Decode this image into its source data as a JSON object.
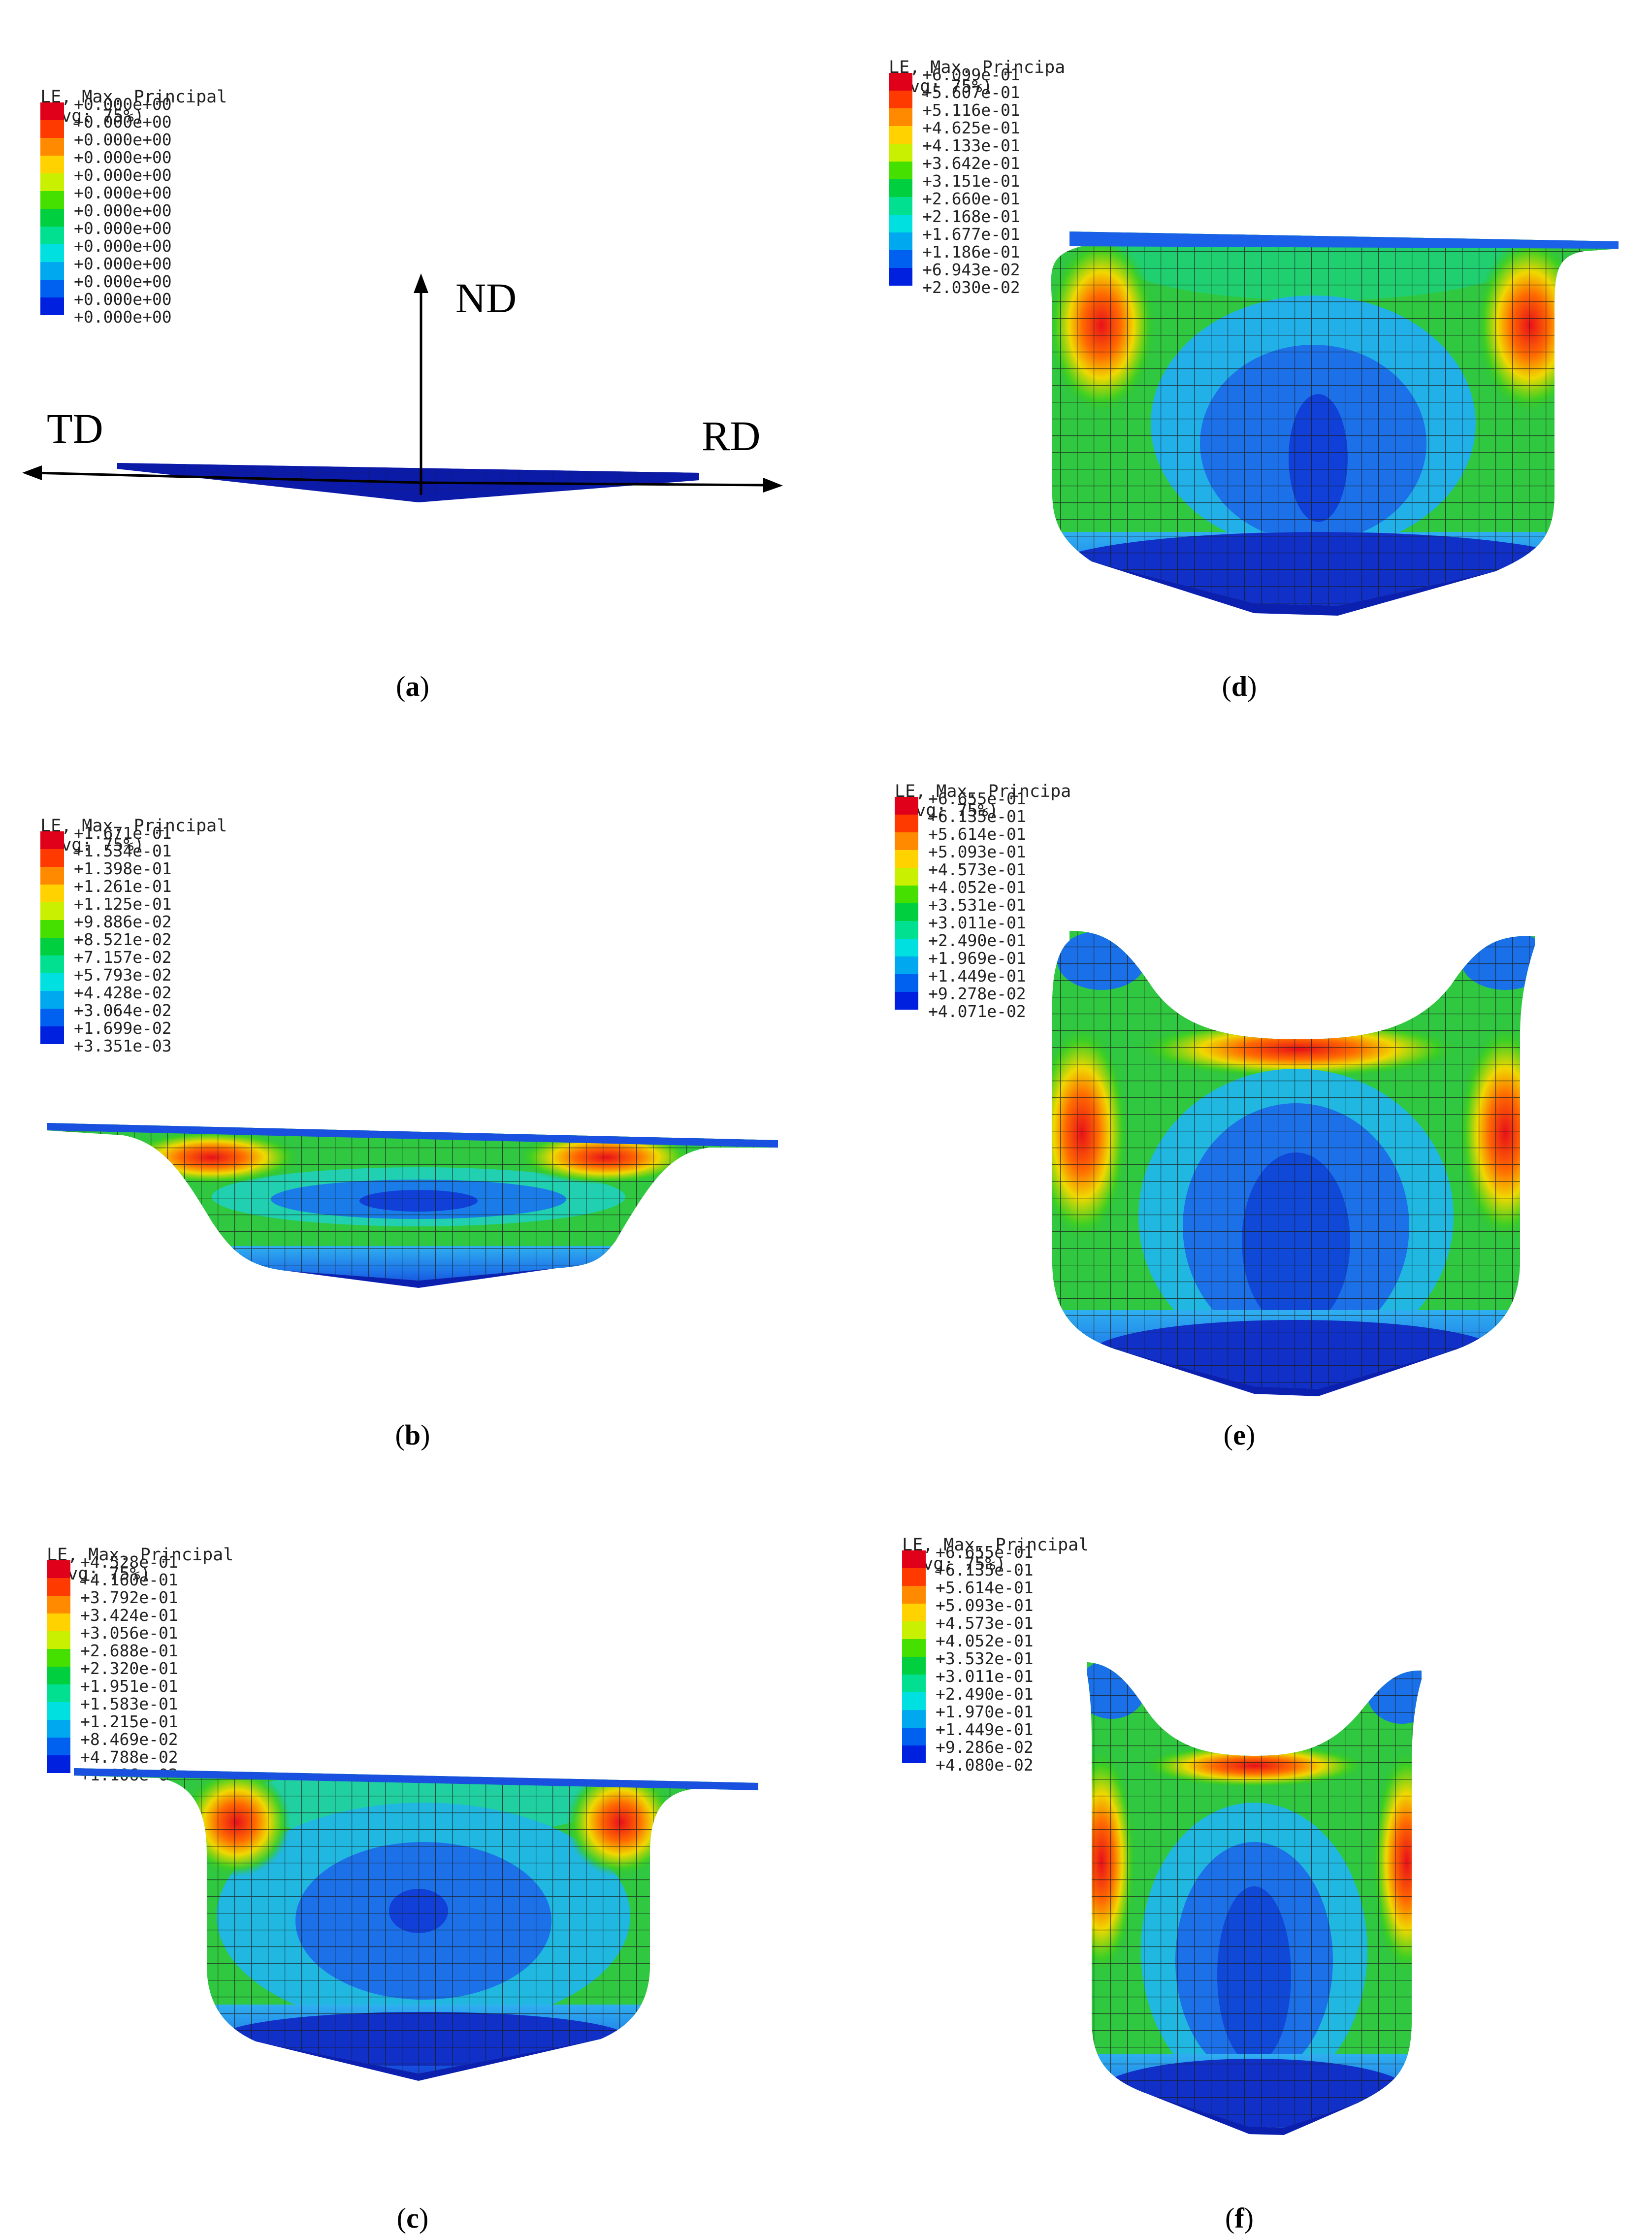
{
  "legend_title": [
    "LE, Max. Principal",
    "(Avg: 75%)"
  ],
  "legend_title_truncated": [
    "LE, Max. Principa",
    "(Avg: 75%)"
  ],
  "legend_colors": [
    "#e0001a",
    "#ff3a00",
    "#ff8a00",
    "#ffd200",
    "#c8f000",
    "#46e000",
    "#00d040",
    "#00e090",
    "#00e0e0",
    "#00a8f0",
    "#0060f0",
    "#0020e0"
  ],
  "panels": {
    "a": {
      "caption": "a",
      "legend_values": [
        "+0.000e+00",
        "+0.000e+00",
        "+0.000e+00",
        "+0.000e+00",
        "+0.000e+00",
        "+0.000e+00",
        "+0.000e+00",
        "+0.000e+00",
        "+0.000e+00",
        "+0.000e+00",
        "+0.000e+00",
        "+0.000e+00",
        "+0.000e+00"
      ],
      "axes": {
        "nd": "ND",
        "td": "TD",
        "rd": "RD"
      }
    },
    "b": {
      "caption": "b",
      "legend_values": [
        "+1.671e-01",
        "+1.534e-01",
        "+1.398e-01",
        "+1.261e-01",
        "+1.125e-01",
        "+9.886e-02",
        "+8.521e-02",
        "+7.157e-02",
        "+5.793e-02",
        "+4.428e-02",
        "+3.064e-02",
        "+1.699e-02",
        "+3.351e-03"
      ]
    },
    "c": {
      "caption": "c",
      "legend_values": [
        "+4.528e-01",
        "+4.160e-01",
        "+3.792e-01",
        "+3.424e-01",
        "+3.056e-01",
        "+2.688e-01",
        "+2.320e-01",
        "+1.951e-01",
        "+1.583e-01",
        "+1.215e-01",
        "+8.469e-02",
        "+4.788e-02",
        "+1.106e-02"
      ]
    },
    "d": {
      "caption": "d",
      "legend_values": [
        "+6.099e-01",
        "+5.607e-01",
        "+5.116e-01",
        "+4.625e-01",
        "+4.133e-01",
        "+3.642e-01",
        "+3.151e-01",
        "+2.660e-01",
        "+2.168e-01",
        "+1.677e-01",
        "+1.186e-01",
        "+6.943e-02",
        "+2.030e-02"
      ]
    },
    "e": {
      "caption": "e",
      "legend_values": [
        "+6.655e-01",
        "+6.135e-01",
        "+5.614e-01",
        "+5.093e-01",
        "+4.573e-01",
        "+4.052e-01",
        "+3.531e-01",
        "+3.011e-01",
        "+2.490e-01",
        "+1.969e-01",
        "+1.449e-01",
        "+9.278e-02",
        "+4.071e-02"
      ]
    },
    "f": {
      "caption": "f",
      "legend_values": [
        "+6.655e-01",
        "+6.135e-01",
        "+5.614e-01",
        "+5.093e-01",
        "+4.573e-01",
        "+4.052e-01",
        "+3.532e-01",
        "+3.011e-01",
        "+2.490e-01",
        "+1.970e-01",
        "+1.449e-01",
        "+9.286e-02",
        "+4.080e-02"
      ]
    }
  }
}
